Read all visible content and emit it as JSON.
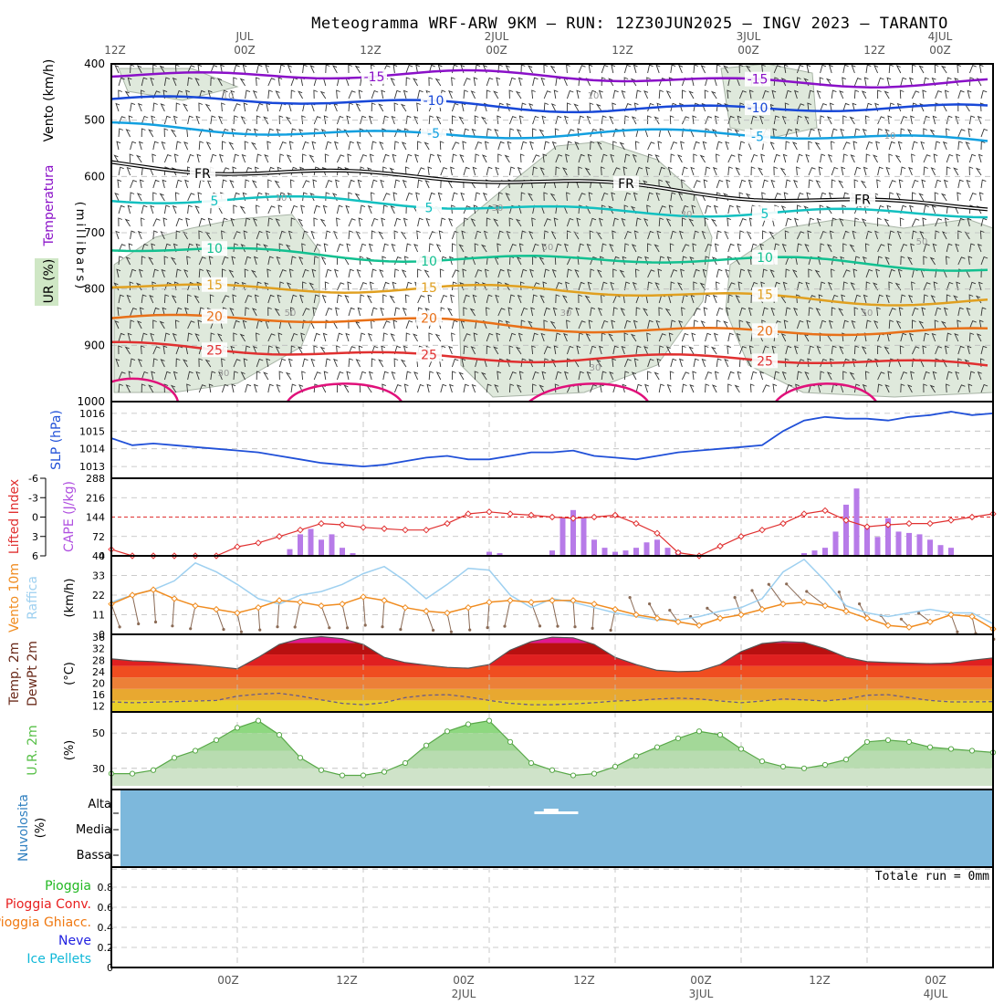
{
  "title": "Meteogramma WRF-ARW 9KM – RUN: 12Z30JUN2025 – INGV 2023 – TARANTO",
  "time_axis": {
    "top_labels": [
      {
        "line1": "12Z",
        "line2": ""
      },
      {
        "line1": "JUL",
        "line2": "00Z"
      },
      {
        "line1": "12Z",
        "line2": ""
      },
      {
        "line1": "2JUL",
        "line2": "00Z"
      },
      {
        "line1": "12Z",
        "line2": ""
      },
      {
        "line1": "3JUL",
        "line2": "00Z"
      },
      {
        "line1": "12Z",
        "line2": ""
      },
      {
        "line1": "4JUL",
        "line2": "00Z"
      }
    ],
    "bottom_labels": [
      {
        "line1": "00Z",
        "line2": ""
      },
      {
        "line1": "12Z",
        "line2": ""
      },
      {
        "line1": "00Z",
        "line2": "2JUL"
      },
      {
        "line1": "12Z",
        "line2": ""
      },
      {
        "line1": "00Z",
        "line2": "3JUL"
      },
      {
        "line1": "12Z",
        "line2": ""
      },
      {
        "line1": "00Z",
        "line2": "4JUL"
      }
    ]
  },
  "panels": {
    "upper_air": {
      "labels": [
        "Vento (km/h)",
        "Temperatura",
        "UR (%)"
      ],
      "axis_label": "(millibars)",
      "y_ticks": [
        "400",
        "500",
        "600",
        "700",
        "800",
        "900",
        "1000"
      ],
      "isotherms": [
        {
          "value": -15,
          "pressure": 415,
          "color": "#8a10c8",
          "label": "-15"
        },
        {
          "value": -10,
          "pressure": 465,
          "color": "#1848d8",
          "label": "-10"
        },
        {
          "value": -5,
          "pressure": 515,
          "color": "#12a0e0",
          "label": "-5"
        },
        {
          "value": 0,
          "pressure": 575,
          "color": "#000000",
          "label": "FR"
        },
        {
          "value": 5,
          "pressure": 640,
          "color": "#12c0c0",
          "label": "5"
        },
        {
          "value": 10,
          "pressure": 730,
          "color": "#12c090",
          "label": "10"
        },
        {
          "value": 15,
          "pressure": 790,
          "color": "#e0a020",
          "label": "15"
        },
        {
          "value": 20,
          "pressure": 850,
          "color": "#e87018",
          "label": "20"
        },
        {
          "value": 25,
          "pressure": 905,
          "color": "#e03030",
          "label": "25"
        },
        {
          "value": 30,
          "pressure": 970,
          "color": "#e0107a",
          "label": ""
        }
      ],
      "rh_contour_labels": [
        "10",
        "10",
        "10",
        "10",
        "30",
        "30",
        "50",
        "50",
        "50",
        "30",
        "30",
        "30",
        "50"
      ]
    },
    "slp": {
      "label": "SLP (hPa)",
      "y_ticks": [
        "1013",
        "1014",
        "1015",
        "1016"
      ]
    },
    "stability": {
      "label_li": "Lifted Index",
      "label_cape": "CAPE (J/kg)",
      "li_ticks": [
        "-6",
        "-3",
        "0",
        "3",
        "6"
      ],
      "cape_ticks": [
        "288",
        "216",
        "144",
        "72",
        "0"
      ]
    },
    "wind10m": {
      "label_wind": "Vento 10m",
      "label_gust": "Raffica",
      "axis_label": "(km/h)",
      "y_ticks": [
        "44",
        "33",
        "22",
        "11",
        "0"
      ]
    },
    "temp2m": {
      "label_temp": "Temp. 2m",
      "label_dew": "DewPt 2m",
      "axis_label": "(°C)",
      "y_ticks": [
        "36",
        "32",
        "28",
        "24",
        "20",
        "16",
        "12"
      ]
    },
    "rh2m": {
      "label": "U.R. 2m",
      "axis_label": "(%)",
      "y_ticks": [
        "50",
        "30"
      ]
    },
    "cloud": {
      "label": "Nuvolosita",
      "axis_label": "(%)",
      "levels": [
        "Alta",
        "Media",
        "Bassa"
      ]
    },
    "precip": {
      "labels": [
        {
          "text": "Pioggia",
          "color": "#22b822"
        },
        {
          "text": "Pioggia Conv.",
          "color": "#e82020"
        },
        {
          "text": "Pioggia Ghiacc.",
          "color": "#f07810"
        },
        {
          "text": "Neve",
          "color": "#2020e0"
        },
        {
          "text": "Ice Pellets",
          "color": "#10b8d8"
        }
      ],
      "y_ticks": [
        "0.8",
        "0.6",
        "0.4",
        "0.2",
        "0"
      ],
      "total_text": "Totale run = 0mm"
    }
  },
  "chart_data": [
    {
      "type": "line",
      "name": "slp",
      "title": "",
      "ylabel": "SLP (hPa)",
      "ylim": [
        1012.7,
        1016.5
      ],
      "x": [
        0,
        2,
        4,
        6,
        8,
        10,
        12,
        14,
        16,
        18,
        20,
        22,
        24,
        26,
        28,
        30,
        32,
        34,
        36,
        38,
        40,
        42,
        44,
        46,
        48,
        50,
        52,
        54,
        56,
        58,
        60,
        62,
        64,
        66,
        68,
        70,
        72,
        74,
        76,
        78,
        80,
        82,
        84
      ],
      "values": [
        1014.6,
        1014.2,
        1014.3,
        1014.2,
        1014.1,
        1014.0,
        1013.9,
        1013.8,
        1013.6,
        1013.4,
        1013.2,
        1013.1,
        1013.0,
        1013.1,
        1013.3,
        1013.5,
        1013.6,
        1013.4,
        1013.4,
        1013.6,
        1013.8,
        1013.8,
        1013.9,
        1013.6,
        1013.5,
        1013.4,
        1013.6,
        1013.8,
        1013.9,
        1014.0,
        1014.1,
        1014.2,
        1015.0,
        1015.6,
        1015.8,
        1015.7,
        1015.7,
        1015.6,
        1015.8,
        1015.9,
        1016.1,
        1015.9,
        1016.0
      ]
    },
    {
      "type": "bar",
      "name": "cape",
      "ylabel": "CAPE (J/kg)",
      "ylim": [
        0,
        288
      ],
      "x": [
        17,
        18,
        19,
        20,
        21,
        22,
        23,
        36,
        37,
        42,
        43,
        44,
        45,
        46,
        47,
        48,
        49,
        50,
        51,
        52,
        53,
        54,
        66,
        67,
        68,
        69,
        70,
        71,
        72,
        73,
        74,
        75,
        76,
        77,
        78,
        79,
        80
      ],
      "values": [
        25,
        80,
        100,
        60,
        80,
        30,
        10,
        15,
        10,
        20,
        140,
        170,
        140,
        60,
        30,
        15,
        20,
        30,
        50,
        60,
        30,
        20,
        10,
        20,
        30,
        90,
        190,
        250,
        110,
        70,
        140,
        90,
        85,
        80,
        60,
        40,
        30
      ]
    },
    {
      "type": "line",
      "name": "lifted_index",
      "ylabel": "Lifted Index",
      "ylim": [
        6,
        -6
      ],
      "x": [
        0,
        2,
        4,
        6,
        8,
        10,
        12,
        14,
        16,
        18,
        20,
        22,
        24,
        26,
        28,
        30,
        32,
        34,
        36,
        38,
        40,
        42,
        44,
        46,
        48,
        50,
        52,
        54,
        56,
        58,
        60,
        62,
        64,
        66,
        68,
        70,
        72,
        74,
        76,
        78,
        80,
        82,
        84
      ],
      "values": [
        5.0,
        6.0,
        6.0,
        6.0,
        6.0,
        6.0,
        4.6,
        4.0,
        3.0,
        2.0,
        1.0,
        1.2,
        1.6,
        1.8,
        2.0,
        2.0,
        1.0,
        -0.5,
        -0.8,
        -0.5,
        -0.3,
        0.0,
        0.2,
        0.0,
        -0.3,
        1.0,
        2.5,
        5.5,
        6.0,
        4.5,
        3.0,
        2.0,
        1.0,
        -0.5,
        -1.0,
        0.5,
        1.5,
        1.2,
        1.0,
        1.0,
        0.5,
        0.0,
        -0.5
      ]
    },
    {
      "type": "line",
      "name": "wind_10m",
      "ylabel": "(km/h)",
      "ylim": [
        0,
        44
      ],
      "x": [
        0,
        2,
        4,
        6,
        8,
        10,
        12,
        14,
        16,
        18,
        20,
        22,
        24,
        26,
        28,
        30,
        32,
        34,
        36,
        38,
        40,
        42,
        44,
        46,
        48,
        50,
        52,
        54,
        56,
        58,
        60,
        62,
        64,
        66,
        68,
        70,
        72,
        74,
        76,
        78,
        80,
        82,
        84
      ],
      "values": [
        17,
        22,
        25,
        20,
        16,
        14,
        12,
        15,
        19,
        18,
        16,
        17,
        21,
        19,
        15,
        13,
        12,
        15,
        18,
        19,
        18,
        19,
        19,
        17,
        14,
        11,
        9,
        7,
        5,
        9,
        11,
        14,
        17,
        18,
        16,
        13,
        9,
        5,
        4,
        7,
        11,
        10,
        3
      ]
    },
    {
      "type": "line",
      "name": "gust",
      "ylabel": "(km/h)",
      "ylim": [
        0,
        44
      ],
      "x": [
        0,
        2,
        4,
        6,
        8,
        10,
        12,
        14,
        16,
        18,
        20,
        22,
        24,
        26,
        28,
        30,
        32,
        34,
        36,
        38,
        40,
        42,
        44,
        46,
        48,
        50,
        52,
        54,
        56,
        58,
        60,
        62,
        64,
        66,
        68,
        70,
        72,
        74,
        76,
        78,
        80,
        82,
        84
      ],
      "values": [
        18,
        22,
        25,
        30,
        40,
        35,
        28,
        20,
        17,
        22,
        24,
        28,
        34,
        38,
        30,
        20,
        28,
        37,
        36,
        22,
        15,
        20,
        18,
        15,
        12,
        10,
        8,
        8,
        10,
        13,
        15,
        20,
        35,
        42,
        30,
        16,
        12,
        10,
        12,
        14,
        12,
        12,
        6
      ]
    },
    {
      "type": "area",
      "name": "temp_2m",
      "ylabel": "(°C)",
      "ylim": [
        12,
        37
      ],
      "x": [
        0,
        2,
        4,
        6,
        8,
        10,
        12,
        14,
        16,
        18,
        20,
        22,
        24,
        26,
        28,
        30,
        32,
        34,
        36,
        38,
        40,
        42,
        44,
        46,
        48,
        50,
        52,
        54,
        56,
        58,
        60,
        62,
        64,
        66,
        68,
        70,
        72,
        74,
        76,
        78,
        80,
        82,
        84
      ],
      "values": [
        28.5,
        27.8,
        27.5,
        27.0,
        26.5,
        25.8,
        25.0,
        29.0,
        33.5,
        35.5,
        36.2,
        35.5,
        33.5,
        29.0,
        27.2,
        26.3,
        25.5,
        25.2,
        26.5,
        31.5,
        34.5,
        36.0,
        35.8,
        33.5,
        29.0,
        26.5,
        24.5,
        24.0,
        24.2,
        26.5,
        31.0,
        33.8,
        34.5,
        34.2,
        32.0,
        29.0,
        27.5,
        27.2,
        27.0,
        26.8,
        27.0,
        28.0,
        28.8
      ]
    },
    {
      "type": "line",
      "name": "dewpt_2m",
      "ylabel": "(°C)",
      "ylim": [
        12,
        37
      ],
      "x": [
        0,
        2,
        4,
        6,
        8,
        10,
        12,
        14,
        16,
        18,
        20,
        22,
        24,
        26,
        28,
        30,
        32,
        34,
        36,
        38,
        40,
        42,
        44,
        46,
        48,
        50,
        52,
        54,
        56,
        58,
        60,
        62,
        64,
        66,
        68,
        70,
        72,
        74,
        76,
        78,
        80,
        82,
        84
      ],
      "values": [
        13.5,
        13.2,
        13.4,
        13.6,
        13.8,
        14.0,
        15.5,
        16.2,
        16.5,
        15.5,
        14.2,
        13.0,
        12.5,
        13.2,
        15.0,
        15.8,
        16.0,
        15.2,
        14.0,
        13.0,
        12.5,
        12.5,
        12.8,
        13.2,
        13.8,
        14.0,
        14.5,
        14.8,
        14.5,
        13.8,
        13.2,
        13.8,
        14.5,
        14.2,
        13.8,
        14.5,
        15.8,
        16.0,
        15.0,
        14.0,
        13.5,
        13.5,
        13.6
      ]
    },
    {
      "type": "area",
      "name": "rh_2m",
      "ylabel": "(%)",
      "ylim": [
        22,
        62
      ],
      "x": [
        0,
        2,
        4,
        6,
        8,
        10,
        12,
        14,
        16,
        18,
        20,
        22,
        24,
        26,
        28,
        30,
        32,
        34,
        36,
        38,
        40,
        42,
        44,
        46,
        48,
        50,
        52,
        54,
        56,
        58,
        60,
        62,
        64,
        66,
        68,
        70,
        72,
        74,
        76,
        78,
        80,
        82,
        84
      ],
      "values": [
        27,
        27,
        29,
        36,
        40,
        46,
        53,
        57,
        49,
        36,
        29,
        26,
        26,
        28,
        33,
        43,
        51,
        55,
        57,
        45,
        33,
        29,
        26,
        27,
        31,
        37,
        42,
        47,
        51,
        49,
        41,
        34,
        31,
        30,
        32,
        35,
        45,
        46,
        45,
        42,
        41,
        40,
        39
      ]
    }
  ]
}
